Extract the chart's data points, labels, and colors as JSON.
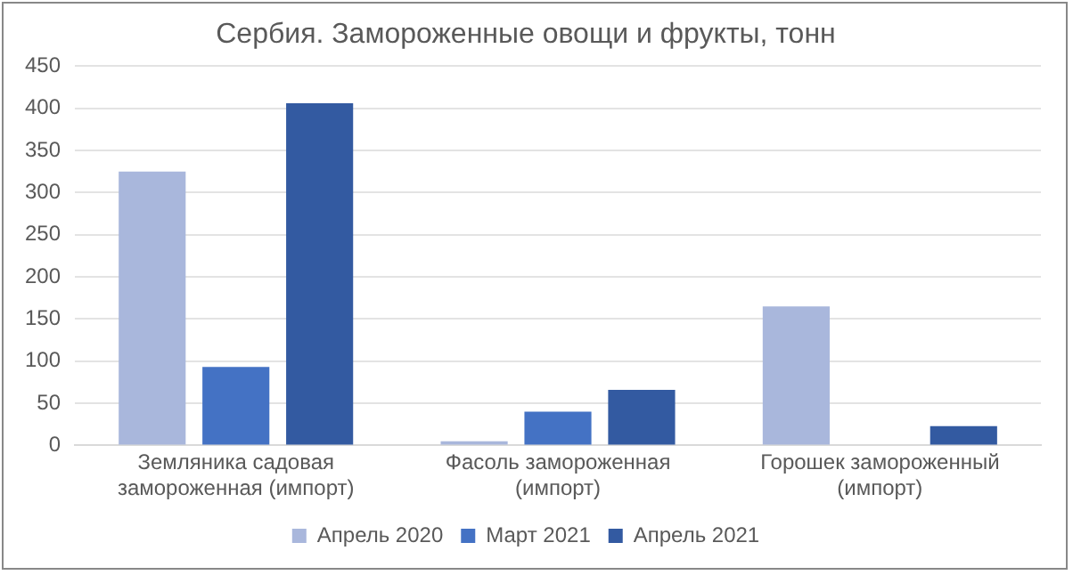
{
  "chart_data": {
    "type": "bar",
    "title": "Сербия. Замороженные овощи и фрукты, тонн",
    "categories": [
      "Земляника садовая замороженная (импорт)",
      "Фасоль замороженная (импорт)",
      "Горошек замороженный (импорт)"
    ],
    "series": [
      {
        "name": "Апрель 2020",
        "color": "#a9b7dc",
        "values": [
          325,
          5,
          165
        ]
      },
      {
        "name": "Март 2021",
        "color": "#4472c4",
        "values": [
          93,
          40,
          null
        ]
      },
      {
        "name": "Апрель 2021",
        "color": "#335aa1",
        "values": [
          406,
          66,
          23
        ]
      }
    ],
    "ylim": [
      0,
      450
    ],
    "yticks": [
      0,
      50,
      100,
      150,
      200,
      250,
      300,
      350,
      400,
      450
    ],
    "grid": "y",
    "legend": "bottom"
  }
}
